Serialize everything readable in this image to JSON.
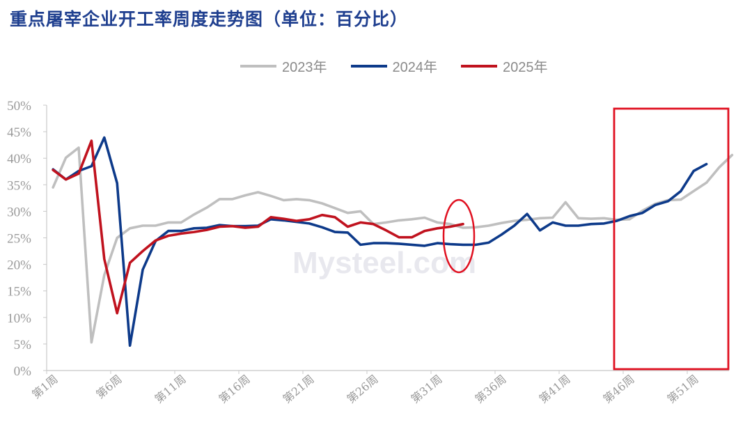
{
  "title": "重点屠宰企业开工率周度走势图（单位：百分比）",
  "watermark": "Mysteel.com",
  "chart_data": {
    "type": "line",
    "title": "重点屠宰企业开工率周度走势图（单位：百分比）",
    "xlabel": "",
    "ylabel": "",
    "ylim": [
      0,
      50
    ],
    "yticks": [
      "0%",
      "5%",
      "10%",
      "15%",
      "20%",
      "25%",
      "30%",
      "35%",
      "40%",
      "45%",
      "50%"
    ],
    "xtick_labels": [
      "第1周",
      "第6周",
      "第11周",
      "第16周",
      "第21周",
      "第26周",
      "第31周",
      "第36周",
      "第41周",
      "第46周",
      "第51周"
    ],
    "legend_position": "top",
    "grid": false,
    "series": [
      {
        "name": "2023年",
        "color": "#bfbfbf",
        "values": [
          34.5,
          40.1,
          42.0,
          5.3,
          18.0,
          25.0,
          26.8,
          27.3,
          27.3,
          27.9,
          27.9,
          29.4,
          30.7,
          32.3,
          32.3,
          33.0,
          33.6,
          32.9,
          32.1,
          32.3,
          32.1,
          31.5,
          30.6,
          29.7,
          30.0,
          27.6,
          27.9,
          28.3,
          28.5,
          28.8,
          27.9,
          27.6,
          26.9,
          27.0,
          27.3,
          27.8,
          28.2,
          28.4,
          28.7,
          28.8,
          31.7,
          28.7,
          28.6,
          28.7,
          28.4,
          28.5,
          30.1,
          31.4,
          32.1,
          32.2,
          33.8,
          35.4,
          38.3,
          40.6
        ]
      },
      {
        "name": "2024年",
        "color": "#0d3a8a",
        "values": [
          37.9,
          36.0,
          37.6,
          38.5,
          43.9,
          35.3,
          4.7,
          19.0,
          24.4,
          26.3,
          26.3,
          26.8,
          26.9,
          27.4,
          27.2,
          27.2,
          27.3,
          28.5,
          28.3,
          28.0,
          27.7,
          27.0,
          26.1,
          26.0,
          23.7,
          24.0,
          24.0,
          23.9,
          23.7,
          23.5,
          24.0,
          23.8,
          23.7,
          23.7,
          24.1,
          25.6,
          27.3,
          29.5,
          26.4,
          27.9,
          27.3,
          27.3,
          27.6,
          27.7,
          28.2,
          29.1,
          29.7,
          31.2,
          31.9,
          33.8,
          37.6,
          38.9
        ]
      },
      {
        "name": "2025年",
        "color": "#c0121e",
        "values": [
          37.8,
          36.0,
          37.1,
          43.3,
          21.0,
          10.8,
          20.3,
          22.5,
          24.5,
          25.4,
          25.8,
          26.1,
          26.5,
          27.1,
          27.2,
          26.9,
          27.1,
          28.9,
          28.6,
          28.2,
          28.5,
          29.3,
          28.9,
          27.1,
          27.9,
          27.6,
          26.4,
          25.1,
          25.1,
          26.3,
          26.8,
          27.1,
          27.6
        ]
      }
    ],
    "annotations": [
      {
        "type": "ellipse",
        "color": "#e01020",
        "description": "week 33"
      },
      {
        "type": "rectangle",
        "color": "#e01020",
        "description": "week 45-53"
      }
    ]
  }
}
